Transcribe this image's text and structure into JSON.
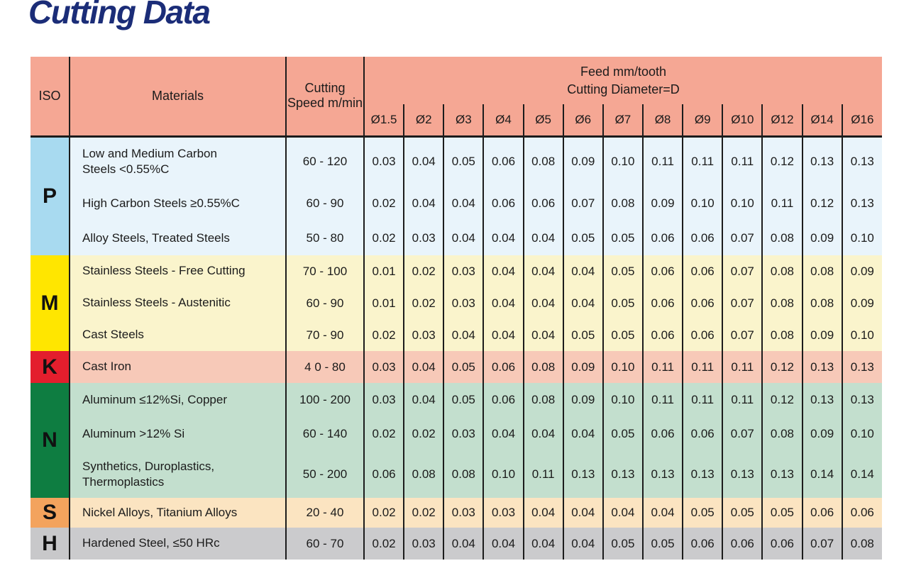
{
  "page_title": "Cutting Data",
  "colors": {
    "title": "#1B2D78",
    "header_bg": "#F5A794",
    "border": "#1c1c1c"
  },
  "table": {
    "header": {
      "iso": "ISO",
      "materials": "Materials",
      "cutting_speed": "Cutting Speed m/min",
      "feed_title_line1": "Feed mm/tooth",
      "feed_title_line2": "Cutting Diameter=D",
      "diameters": [
        "Ø1.5",
        "Ø2",
        "Ø3",
        "Ø4",
        "Ø5",
        "Ø6",
        "Ø7",
        "Ø8",
        "Ø9",
        "Ø10",
        "Ø12",
        "Ø14",
        "Ø16"
      ]
    },
    "groups": [
      {
        "iso": "P",
        "iso_bg": "#A8DAF0",
        "row_bg": "#E9F4FB",
        "rows": [
          {
            "material": "Low and Medium Carbon\nSteels <0.55%C",
            "speed": "60 - 120",
            "feeds": [
              "0.03",
              "0.04",
              "0.05",
              "0.06",
              "0.08",
              "0.09",
              "0.10",
              "0.11",
              "0.11",
              "0.11",
              "0.12",
              "0.13",
              "0.13"
            ]
          },
          {
            "material": "High Carbon Steels ≥0.55%C",
            "speed": "60 - 90",
            "feeds": [
              "0.02",
              "0.04",
              "0.04",
              "0.06",
              "0.06",
              "0.07",
              "0.08",
              "0.09",
              "0.10",
              "0.10",
              "0.11",
              "0.12",
              "0.13"
            ]
          },
          {
            "material": "Alloy Steels, Treated Steels",
            "speed": "50 - 80",
            "feeds": [
              "0.02",
              "0.03",
              "0.04",
              "0.04",
              "0.04",
              "0.05",
              "0.05",
              "0.06",
              "0.06",
              "0.07",
              "0.08",
              "0.09",
              "0.10"
            ]
          }
        ]
      },
      {
        "iso": "M",
        "iso_bg": "#FFE600",
        "row_bg": "#FAF4CC",
        "rows": [
          {
            "material": "Stainless Steels - Free Cutting",
            "speed": "70 - 100",
            "feeds": [
              "0.01",
              "0.02",
              "0.03",
              "0.04",
              "0.04",
              "0.04",
              "0.05",
              "0.06",
              "0.06",
              "0.07",
              "0.08",
              "0.08",
              "0.09"
            ]
          },
          {
            "material": "Stainless Steels - Austenitic",
            "speed": "60 - 90",
            "feeds": [
              "0.01",
              "0.02",
              "0.03",
              "0.04",
              "0.04",
              "0.04",
              "0.05",
              "0.06",
              "0.06",
              "0.07",
              "0.08",
              "0.08",
              "0.09"
            ]
          },
          {
            "material": "Cast Steels",
            "speed": "70 - 90",
            "feeds": [
              "0.02",
              "0.03",
              "0.04",
              "0.04",
              "0.04",
              "0.05",
              "0.05",
              "0.06",
              "0.06",
              "0.07",
              "0.08",
              "0.09",
              "0.10"
            ]
          }
        ]
      },
      {
        "iso": "K",
        "iso_bg": "#E31E2D",
        "row_bg": "#F7C9B8",
        "rows": [
          {
            "material": "Cast Iron",
            "speed": "4 0 - 80",
            "feeds": [
              "0.03",
              "0.04",
              "0.05",
              "0.06",
              "0.08",
              "0.09",
              "0.10",
              "0.11",
              "0.11",
              "0.11",
              "0.12",
              "0.13",
              "0.13"
            ]
          }
        ]
      },
      {
        "iso": "N",
        "iso_bg": "#0E7D41",
        "row_bg": "#C3DFCE",
        "rows": [
          {
            "material": "Aluminum ≤12%Si, Copper",
            "speed": "100 - 200",
            "feeds": [
              "0.03",
              "0.04",
              "0.05",
              "0.06",
              "0.08",
              "0.09",
              "0.10",
              "0.11",
              "0.11",
              "0.11",
              "0.12",
              "0.13",
              "0.13"
            ]
          },
          {
            "material": "Aluminum >12% Si",
            "speed": "60 - 140",
            "feeds": [
              "0.02",
              "0.02",
              "0.03",
              "0.04",
              "0.04",
              "0.04",
              "0.05",
              "0.06",
              "0.06",
              "0.07",
              "0.08",
              "0.09",
              "0.10"
            ]
          },
          {
            "material": "Synthetics, Duroplastics,\nThermoplastics",
            "speed": "50 - 200",
            "feeds": [
              "0.06",
              "0.08",
              "0.08",
              "0.10",
              "0.11",
              "0.13",
              "0.13",
              "0.13",
              "0.13",
              "0.13",
              "0.13",
              "0.14",
              "0.14"
            ]
          }
        ]
      },
      {
        "iso": "S",
        "iso_bg": "#F3A35D",
        "row_bg": "#FBE4C1",
        "rows": [
          {
            "material": "Nickel Alloys, Titanium Alloys",
            "speed": "20 - 40",
            "feeds": [
              "0.02",
              "0.02",
              "0.03",
              "0.03",
              "0.04",
              "0.04",
              "0.04",
              "0.04",
              "0.05",
              "0.05",
              "0.05",
              "0.06",
              "0.06"
            ]
          }
        ]
      },
      {
        "iso": "H",
        "iso_bg": "#C8C8CA",
        "row_bg": "#CBCBCD",
        "rows": [
          {
            "material": "Hardened Steel, ≤50 HRc",
            "speed": "60 - 70",
            "feeds": [
              "0.02",
              "0.03",
              "0.04",
              "0.04",
              "0.04",
              "0.04",
              "0.05",
              "0.05",
              "0.06",
              "0.06",
              "0.06",
              "0.07",
              "0.08"
            ]
          }
        ]
      }
    ]
  }
}
